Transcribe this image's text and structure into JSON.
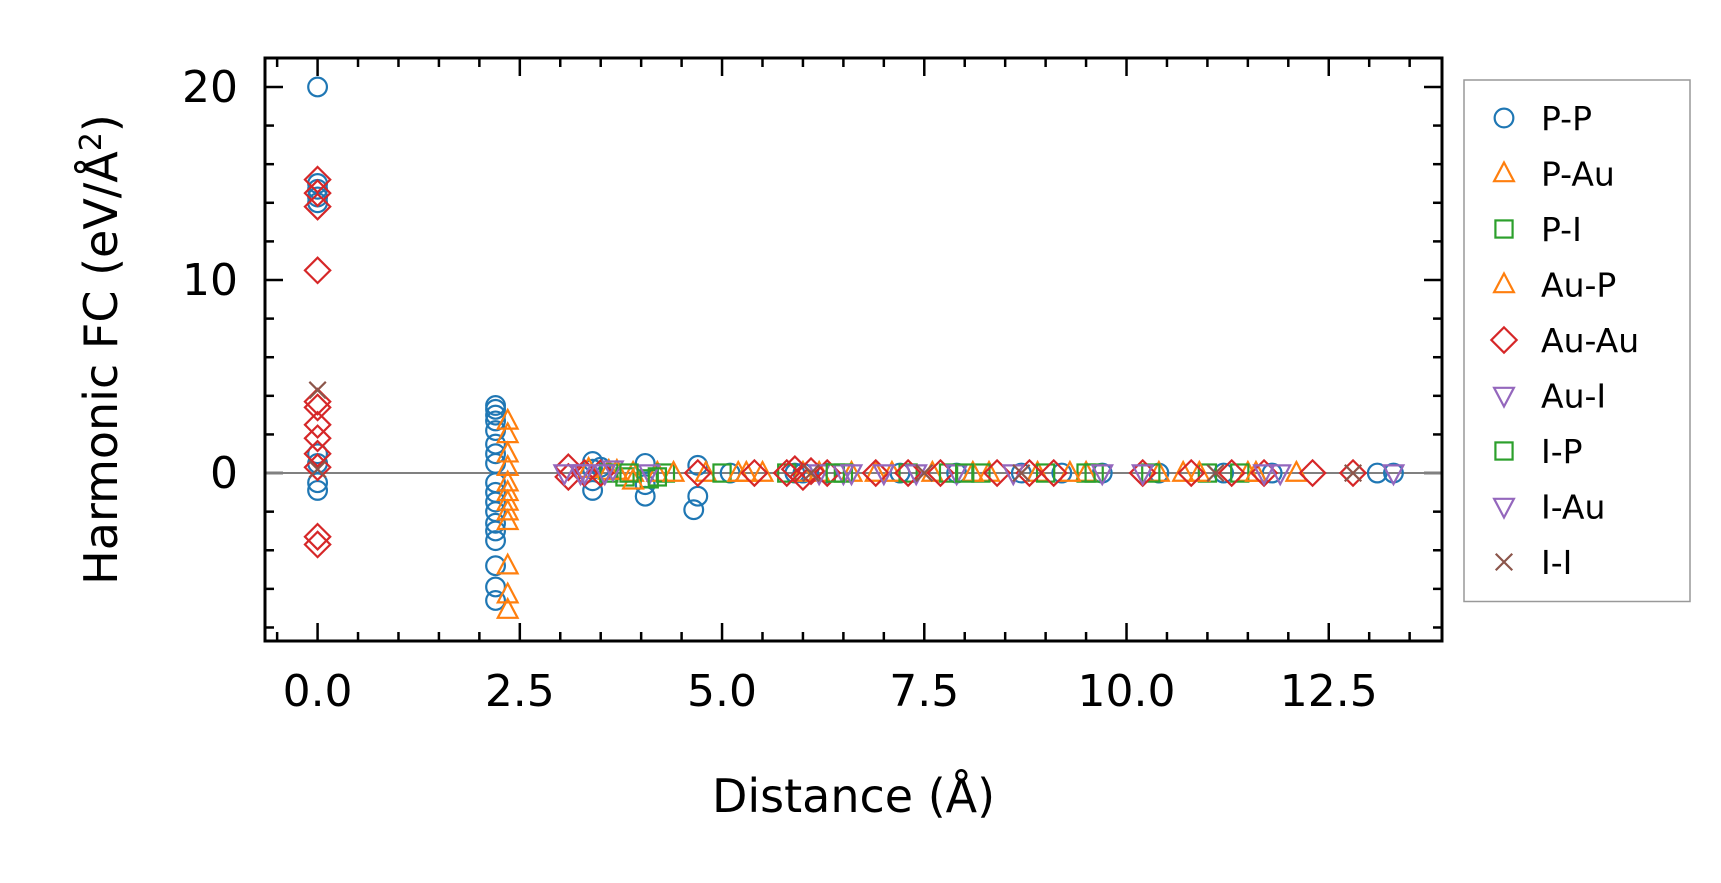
{
  "chart_data": {
    "type": "scatter",
    "title": "",
    "xlabel": "Distance (Å)",
    "ylabel": "Harmonic FC (eV/Å²)",
    "xlim": [
      -0.65,
      13.9
    ],
    "ylim": [
      -8.7,
      21.5
    ],
    "xticks": [
      0,
      2.5,
      5,
      7.5,
      10,
      12.5
    ],
    "xtick_labels": [
      "0.0",
      "2.5",
      "5.0",
      "7.5",
      "10.0",
      "12.5"
    ],
    "yticks": [
      0,
      10,
      20
    ],
    "ytick_labels": [
      "0",
      "10",
      "20"
    ],
    "zero_line": 0,
    "legend_position": "outside-right",
    "series": [
      {
        "name": "P-P",
        "marker": "circle",
        "color": "#1f77b4",
        "points": [
          [
            0,
            20.0
          ],
          [
            0,
            15.0
          ],
          [
            0,
            14.7
          ],
          [
            0,
            14.3
          ],
          [
            0,
            14.0
          ],
          [
            0,
            1.0
          ],
          [
            0,
            0.5
          ],
          [
            0,
            -0.5
          ],
          [
            0,
            -0.9
          ],
          [
            2.2,
            3.5
          ],
          [
            2.2,
            3.3
          ],
          [
            2.2,
            3.0
          ],
          [
            2.2,
            2.7
          ],
          [
            2.2,
            2.2
          ],
          [
            2.2,
            1.5
          ],
          [
            2.2,
            1.0
          ],
          [
            2.2,
            0.5
          ],
          [
            2.2,
            -0.5
          ],
          [
            2.2,
            -1.0
          ],
          [
            2.2,
            -1.5
          ],
          [
            2.2,
            -2.0
          ],
          [
            2.2,
            -2.6
          ],
          [
            2.2,
            -3.0
          ],
          [
            2.2,
            -3.5
          ],
          [
            2.2,
            -4.8
          ],
          [
            2.2,
            -5.9
          ],
          [
            2.2,
            -6.6
          ],
          [
            3.4,
            0.6
          ],
          [
            3.4,
            0.2
          ],
          [
            3.4,
            -0.4
          ],
          [
            3.4,
            -0.9
          ],
          [
            3.5,
            0.3
          ],
          [
            4.05,
            0.5
          ],
          [
            4.05,
            -0.6
          ],
          [
            4.05,
            -1.2
          ],
          [
            4.7,
            0.4
          ],
          [
            4.7,
            -1.2
          ],
          [
            4.65,
            -1.9
          ],
          [
            5.1,
            0
          ],
          [
            5.9,
            0
          ],
          [
            6.0,
            0
          ],
          [
            6.3,
            0
          ],
          [
            7.2,
            0
          ],
          [
            7.9,
            0
          ],
          [
            8.7,
            0
          ],
          [
            9.2,
            0
          ],
          [
            9.7,
            0
          ],
          [
            10.4,
            0
          ],
          [
            11.2,
            0
          ],
          [
            11.8,
            0
          ],
          [
            13.1,
            0
          ],
          [
            13.3,
            0
          ]
        ]
      },
      {
        "name": "P-Au",
        "marker": "triangle-up",
        "color": "#ff7f0e",
        "points": [
          [
            2.35,
            2.7
          ],
          [
            2.35,
            2.0
          ],
          [
            2.35,
            1.0
          ],
          [
            2.35,
            0.3
          ],
          [
            2.35,
            -0.5
          ],
          [
            2.35,
            -1.0
          ],
          [
            2.35,
            -1.5
          ],
          [
            2.35,
            -2.0
          ],
          [
            2.35,
            -2.5
          ],
          [
            2.35,
            -4.8
          ],
          [
            2.35,
            -6.3
          ],
          [
            2.35,
            -7.1
          ],
          [
            3.35,
            0.2
          ],
          [
            3.6,
            0.1
          ],
          [
            3.9,
            0
          ],
          [
            4.2,
            0
          ],
          [
            4.8,
            0
          ],
          [
            5.3,
            0
          ],
          [
            5.5,
            0
          ],
          [
            6.2,
            0
          ],
          [
            6.6,
            0
          ],
          [
            7.1,
            0
          ],
          [
            7.6,
            0
          ],
          [
            8.3,
            0
          ],
          [
            8.9,
            0
          ],
          [
            9.5,
            0
          ],
          [
            10.4,
            0
          ],
          [
            10.7,
            0
          ],
          [
            11.5,
            0
          ],
          [
            12.1,
            0
          ]
        ]
      },
      {
        "name": "P-I",
        "marker": "square",
        "color": "#2ca02c",
        "points": [
          [
            3.6,
            0
          ],
          [
            3.8,
            -0.2
          ],
          [
            4.1,
            -0.3
          ],
          [
            4.3,
            0
          ],
          [
            5.0,
            0
          ],
          [
            5.8,
            0
          ],
          [
            6.5,
            0
          ],
          [
            7.3,
            0
          ],
          [
            7.8,
            0
          ],
          [
            8.2,
            0
          ],
          [
            9.0,
            0
          ],
          [
            9.5,
            0
          ],
          [
            10.3,
            0
          ],
          [
            11.0,
            0
          ],
          [
            11.4,
            0
          ]
        ]
      },
      {
        "name": "Au-P",
        "marker": "triangle-up",
        "color": "#ff7f0e",
        "points": [
          [
            3.7,
            0.1
          ],
          [
            3.9,
            -0.4
          ],
          [
            4.4,
            0
          ],
          [
            5.2,
            0
          ],
          [
            6.0,
            0
          ],
          [
            6.9,
            0
          ],
          [
            8.1,
            0
          ],
          [
            9.3,
            0
          ],
          [
            10.9,
            0
          ],
          [
            11.6,
            0
          ]
        ]
      },
      {
        "name": "Au-Au",
        "marker": "diamond",
        "color": "#d62728",
        "points": [
          [
            0,
            15.2
          ],
          [
            0,
            14.5
          ],
          [
            0,
            13.8
          ],
          [
            0,
            10.5
          ],
          [
            0,
            3.7
          ],
          [
            0,
            3.4
          ],
          [
            0,
            2.5
          ],
          [
            0,
            1.8
          ],
          [
            0,
            1.0
          ],
          [
            0,
            0.3
          ],
          [
            0,
            -3.3
          ],
          [
            0,
            -3.7
          ],
          [
            3.1,
            0.3
          ],
          [
            3.1,
            -0.2
          ],
          [
            3.3,
            0
          ],
          [
            3.5,
            0
          ],
          [
            4.7,
            0
          ],
          [
            5.4,
            0
          ],
          [
            5.8,
            0
          ],
          [
            5.9,
            0.2
          ],
          [
            6.0,
            -0.2
          ],
          [
            6.1,
            0.1
          ],
          [
            6.3,
            0
          ],
          [
            6.9,
            0
          ],
          [
            7.3,
            0
          ],
          [
            7.7,
            0
          ],
          [
            8.4,
            0
          ],
          [
            8.8,
            0
          ],
          [
            9.1,
            0
          ],
          [
            10.2,
            0
          ],
          [
            10.8,
            0
          ],
          [
            11.3,
            0
          ],
          [
            11.7,
            0
          ],
          [
            12.3,
            0
          ],
          [
            12.8,
            0
          ]
        ]
      },
      {
        "name": "Au-I",
        "marker": "triangle-down",
        "color": "#9467bd",
        "points": [
          [
            3.05,
            0
          ],
          [
            3.3,
            0
          ],
          [
            3.65,
            0.2
          ],
          [
            4.1,
            0
          ],
          [
            6.2,
            0
          ],
          [
            6.5,
            0
          ],
          [
            7.0,
            0
          ],
          [
            7.9,
            0
          ],
          [
            8.6,
            0
          ],
          [
            10.2,
            0
          ],
          [
            11.7,
            0
          ],
          [
            13.3,
            0
          ]
        ]
      },
      {
        "name": "I-P",
        "marker": "square",
        "color": "#2ca02c",
        "points": [
          [
            3.85,
            0
          ],
          [
            4.2,
            -0.2
          ],
          [
            6.4,
            0
          ],
          [
            8.0,
            0
          ],
          [
            9.6,
            0
          ]
        ]
      },
      {
        "name": "I-Au",
        "marker": "triangle-down",
        "color": "#9467bd",
        "points": [
          [
            3.25,
            0
          ],
          [
            3.55,
            0
          ],
          [
            6.6,
            0
          ],
          [
            7.4,
            0
          ],
          [
            9.7,
            0
          ],
          [
            11.9,
            0
          ]
        ]
      },
      {
        "name": "I-I",
        "marker": "x",
        "color": "#8c564b",
        "points": [
          [
            0,
            4.3
          ],
          [
            0,
            0.2
          ],
          [
            6.1,
            0
          ],
          [
            7.5,
            0
          ],
          [
            8.7,
            0
          ],
          [
            11.1,
            0
          ],
          [
            12.8,
            0
          ]
        ]
      }
    ]
  }
}
